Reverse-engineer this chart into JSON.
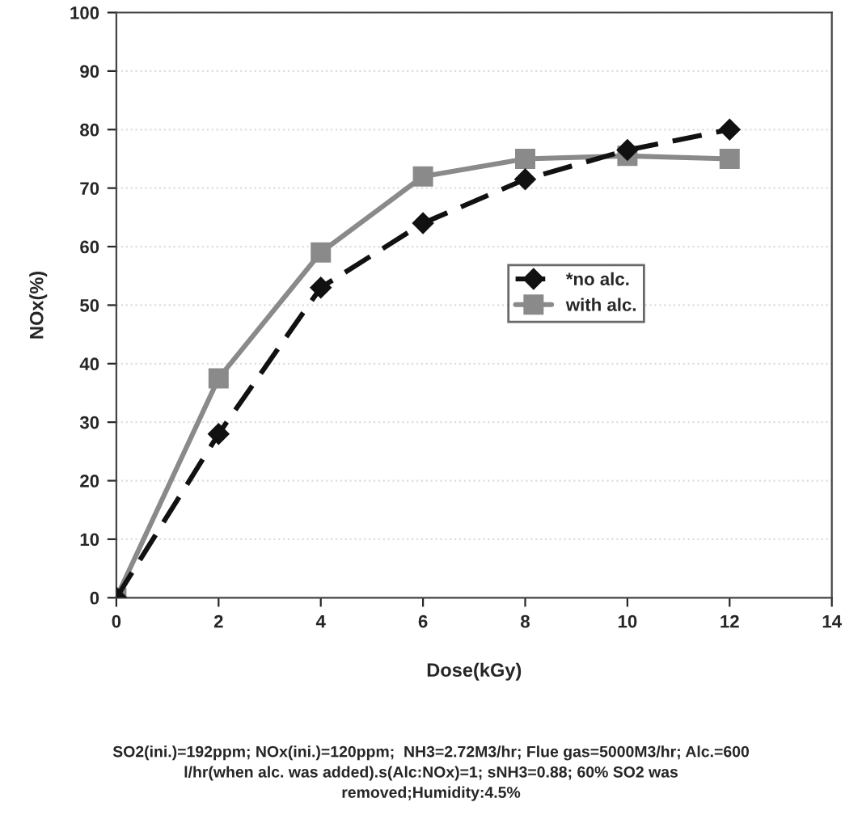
{
  "chart_data": {
    "type": "line",
    "xlabel": "Dose(kGy)",
    "ylabel": "NOx(%)",
    "x": [
      0,
      2,
      4,
      6,
      8,
      10,
      12
    ],
    "series": [
      {
        "name": "*no alc.",
        "color": "#111111",
        "values": [
          0,
          28,
          53,
          64,
          71.5,
          76.5,
          80
        ],
        "marker": "diamond",
        "line_style": "dashed"
      },
      {
        "name": "with alc.",
        "color": "#8a8a8a",
        "values": [
          0,
          37.5,
          59,
          72,
          75,
          75.5,
          75
        ],
        "marker": "square",
        "line_style": "solid"
      }
    ],
    "xlim": [
      0,
      14
    ],
    "xticks": [
      0,
      2,
      4,
      6,
      8,
      10,
      12,
      14
    ],
    "ylim": [
      0,
      100
    ],
    "yticks": [
      0,
      10,
      20,
      30,
      40,
      50,
      60,
      70,
      80,
      90,
      100
    ],
    "grid": "y",
    "legend": "right",
    "annotations": [
      "SO2(ini.)=192ppm; NOx(ini.)=120ppm;  NH3=2.72M3/hr; Flue gas=5000M3/hr; Alc.=600 l/hr(when alc. was added).s(Alc:NOx)=1; sNH3=0.88; 60% SO2 was removed;Humidity:4.5%"
    ]
  }
}
